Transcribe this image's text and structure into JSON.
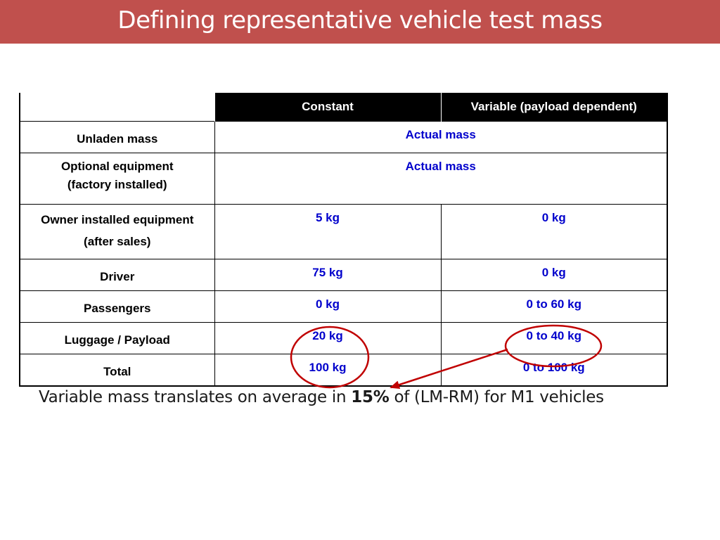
{
  "slide": {
    "title": "Defining representative vehicle test mass",
    "colors": {
      "title_bar": "#c0504d",
      "value_text": "#0000cc",
      "annotation": "#c00000"
    }
  },
  "table": {
    "columns": [
      "Constant",
      "Variable (payload dependent)"
    ],
    "rows": [
      {
        "label": "Unladen mass",
        "merged": "Actual mass"
      },
      {
        "label_lines": [
          "Optional equipment",
          "(factory installed)"
        ],
        "merged": "Actual mass"
      },
      {
        "label_lines": [
          "Owner installed equipment",
          "(after sales)"
        ],
        "constant": "5 kg",
        "variable": "0 kg"
      },
      {
        "label": "Driver",
        "constant": "75 kg",
        "variable": "0 kg"
      },
      {
        "label": "Passengers",
        "constant": "0 kg",
        "variable": "0 to 60 kg"
      },
      {
        "label": "Luggage / Payload",
        "constant": "20 kg",
        "variable": "0 to 40 kg"
      },
      {
        "label": "Total",
        "constant": "100 kg",
        "variable": "0 to 100 kg"
      }
    ]
  },
  "note": {
    "before": "Variable mass translates on average in ",
    "bold": "15%",
    "after": " of (LM-RM) for M1 vehicles"
  }
}
